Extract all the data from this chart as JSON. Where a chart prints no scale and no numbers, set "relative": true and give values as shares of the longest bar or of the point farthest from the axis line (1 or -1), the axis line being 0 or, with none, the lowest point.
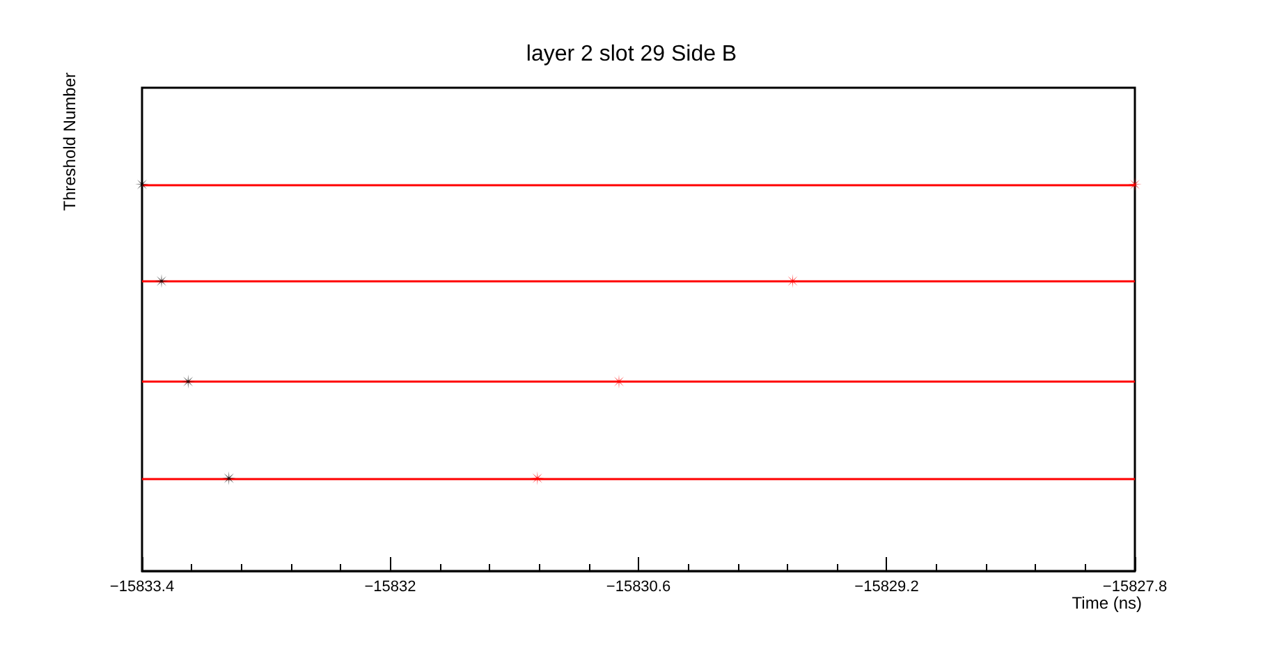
{
  "chart_data": {
    "type": "scatter",
    "title": "layer 2 slot 29 Side B",
    "xlabel": "Time (ns)",
    "ylabel": "Threshold Number",
    "relative": true,
    "marker": "star",
    "xlim": [
      -15833.4,
      -15827.8
    ],
    "xticks": [
      -15833.4,
      -15832,
      -15830.6,
      -15829.2,
      -15827.8
    ],
    "series": [
      {
        "color": "#000000",
        "x": [
          -15833.4,
          -15833.29,
          -15833.14,
          -15832.91
        ],
        "values": [
          1,
          0.75,
          0.49,
          0.24
        ]
      },
      {
        "color": "#ff0000",
        "x": [
          -15827.8,
          -15829.73,
          -15830.71,
          -15831.17
        ],
        "values": [
          1,
          0.75,
          0.49,
          0.24
        ]
      }
    ],
    "ref_lines": [
      {
        "axis": "y",
        "value": 1,
        "color": "#ff0000"
      },
      {
        "axis": "y",
        "value": 0.75,
        "color": "#ff0000"
      },
      {
        "axis": "y",
        "value": 0.49,
        "color": "#ff0000"
      },
      {
        "axis": "y",
        "value": 0.24,
        "color": "#ff0000"
      }
    ]
  }
}
